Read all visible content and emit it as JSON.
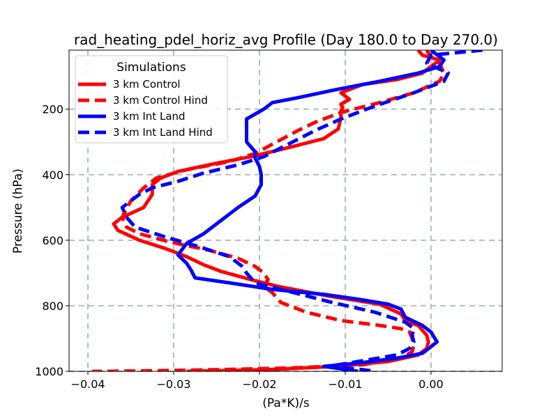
{
  "chart_data": {
    "type": "line",
    "title": "rad_heating_pdel_horiz_avg Profile (Day 180.0 to Day 270.0)",
    "xlabel": "(Pa*K)/s",
    "ylabel": "Pressure (hPa)",
    "xlim": [
      -0.0422,
      0.0083
    ],
    "ylim": [
      1000,
      20
    ],
    "y_inverted": true,
    "grid": true,
    "x_ticks": [
      -0.04,
      -0.03,
      -0.02,
      -0.01,
      0.0
    ],
    "x_tick_labels": [
      "−0.04",
      "−0.03",
      "−0.02",
      "−0.01",
      "0.00"
    ],
    "y_ticks": [
      200,
      400,
      600,
      800,
      1000
    ],
    "y_tick_labels": [
      "200",
      "400",
      "600",
      "800",
      "1000"
    ],
    "legend": {
      "title": "Simulations",
      "position": "upper-left",
      "entries": [
        "3 km Control",
        "3 km Control Hind",
        "3 km Int Land",
        "3 km Int Land Hind"
      ]
    },
    "series": [
      {
        "name": "3 km Control",
        "color": "#ff0000",
        "dash": "solid",
        "x": [
          -0.0015,
          -0.001,
          0.001,
          0.0,
          -0.001,
          -0.004,
          -0.008,
          -0.0105,
          -0.0095,
          -0.0105,
          -0.0103,
          -0.0105,
          -0.0105,
          -0.0108,
          -0.0125,
          -0.017,
          -0.021,
          -0.025,
          -0.0295,
          -0.0315,
          -0.0325,
          -0.0325,
          -0.0335,
          -0.036,
          -0.037,
          -0.0365,
          -0.034,
          -0.031,
          -0.0285,
          -0.0265,
          -0.0245,
          -0.021,
          -0.018,
          -0.012,
          -0.006,
          -0.0035,
          -0.003,
          -0.0015,
          -0.0005,
          -0.0003,
          -0.0005,
          -0.0015,
          -0.005,
          -0.011,
          -0.019,
          -0.0285
        ],
        "y": [
          20,
          35,
          50,
          70,
          90,
          110,
          125,
          150,
          170,
          185,
          195,
          205,
          225,
          260,
          290,
          320,
          345,
          365,
          390,
          410,
          430,
          460,
          500,
          530,
          550,
          570,
          600,
          625,
          650,
          675,
          695,
          720,
          740,
          770,
          795,
          825,
          845,
          860,
          890,
          910,
          930,
          950,
          970,
          985,
          995,
          1000
        ]
      },
      {
        "name": "3 km Control Hind",
        "color": "#ff0000",
        "dash": "dashed",
        "x": [
          -0.0005,
          0.0,
          0.001,
          0.0015,
          0.001,
          -0.002,
          -0.006,
          -0.0105,
          -0.0135,
          -0.0155,
          -0.018,
          -0.0205,
          -0.0235,
          -0.0285,
          -0.032,
          -0.0335,
          -0.035,
          -0.036,
          -0.0355,
          -0.034,
          -0.0305,
          -0.026,
          -0.0225,
          -0.0205,
          -0.0195,
          -0.019,
          -0.0195,
          -0.0185,
          -0.0175,
          -0.0145,
          -0.0105,
          -0.006,
          -0.0035,
          -0.0025,
          -0.0022,
          -0.002,
          -0.0022,
          -0.0035,
          -0.008,
          -0.0165,
          -0.025,
          -0.032,
          -0.038,
          -0.0395
        ],
        "y": [
          20,
          40,
          60,
          90,
          115,
          150,
          180,
          210,
          240,
          265,
          300,
          335,
          360,
          385,
          410,
          440,
          480,
          530,
          560,
          580,
          605,
          630,
          655,
          680,
          700,
          720,
          740,
          760,
          790,
          820,
          845,
          860,
          870,
          880,
          900,
          920,
          940,
          960,
          980,
          990,
          995,
          998,
          1000,
          1000
        ]
      },
      {
        "name": "3 km Int Land",
        "color": "#0000ff",
        "dash": "solid",
        "x": [
          0.0,
          0.0015,
          0.001,
          -0.0015,
          -0.006,
          -0.011,
          -0.0155,
          -0.0185,
          -0.0195,
          -0.0215,
          -0.0215,
          -0.0215,
          -0.0205,
          -0.0205,
          -0.02,
          -0.0198,
          -0.0198,
          -0.0205,
          -0.0225,
          -0.0245,
          -0.0265,
          -0.0285,
          -0.0295,
          -0.0285,
          -0.028,
          -0.0275,
          -0.0235,
          -0.0185,
          -0.0125,
          -0.0085,
          -0.005,
          -0.0035,
          -0.003,
          -0.001,
          0.0,
          0.0007,
          0.0,
          -0.001,
          -0.004,
          -0.0085,
          -0.0125,
          -0.0085
        ],
        "y": [
          20,
          50,
          70,
          90,
          115,
          140,
          165,
          180,
          200,
          230,
          260,
          300,
          330,
          350,
          375,
          400,
          430,
          465,
          500,
          540,
          580,
          610,
          645,
          670,
          690,
          715,
          730,
          750,
          765,
          780,
          795,
          810,
          835,
          860,
          880,
          910,
          925,
          945,
          960,
          975,
          985,
          1000
        ]
      },
      {
        "name": "3 km Int Land Hind",
        "color": "#0000ff",
        "dash": "dashed",
        "x": [
          0.006,
          0.0,
          -0.0005,
          0.002,
          0.0015,
          -0.002,
          -0.0065,
          -0.0105,
          -0.0135,
          -0.0165,
          -0.0195,
          -0.0225,
          -0.0265,
          -0.0295,
          -0.0325,
          -0.034,
          -0.036,
          -0.0355,
          -0.0345,
          -0.031,
          -0.027,
          -0.0235,
          -0.022,
          -0.0215,
          -0.0205,
          -0.016,
          -0.0115,
          -0.0065,
          -0.003,
          -0.002,
          -0.0022,
          -0.002,
          -0.0025,
          -0.004,
          -0.0085,
          -0.012,
          -0.008,
          -0.0065
        ],
        "y": [
          20,
          35,
          60,
          90,
          115,
          150,
          190,
          230,
          265,
          305,
          345,
          370,
          395,
          420,
          440,
          460,
          500,
          530,
          560,
          590,
          620,
          650,
          680,
          700,
          730,
          760,
          790,
          820,
          850,
          870,
          890,
          910,
          930,
          950,
          970,
          985,
          995,
          1000
        ]
      }
    ]
  }
}
